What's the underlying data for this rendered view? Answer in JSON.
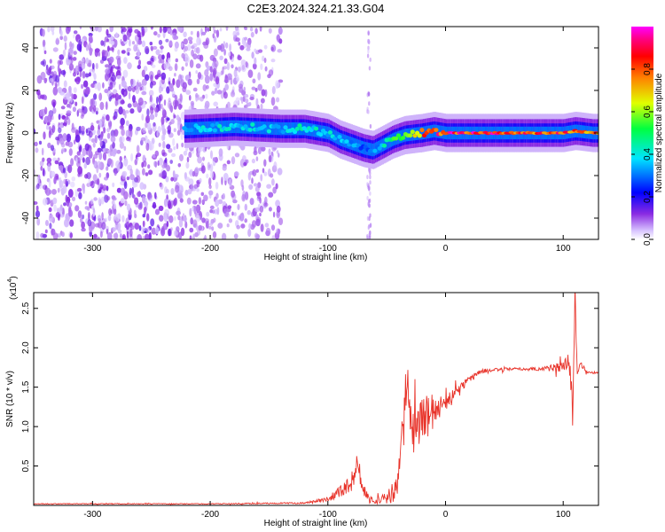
{
  "title": "C2E3.2024.324.21.33.G04",
  "chart_data": [
    {
      "type": "heatmap",
      "xlabel": "Height of straight line (km)",
      "ylabel": "Frequency (Hz)",
      "xlim": [
        -350,
        130
      ],
      "ylim": [
        -50,
        50
      ],
      "x_ticks": [
        -300,
        -200,
        -100,
        0,
        100
      ],
      "y_ticks": [
        -40,
        -20,
        0,
        20,
        40
      ],
      "colorbar": {
        "label": "Normalized spectral amplitude",
        "range": [
          0,
          1
        ],
        "ticks": [
          "0.0",
          "0.2",
          "0.4",
          "0.6",
          "0.8"
        ],
        "tick_values": [
          0.0,
          0.2,
          0.4,
          0.6,
          0.8
        ],
        "colors": [
          "#ffffff",
          "#dcc6ff",
          "#8a2be2",
          "#0000ff",
          "#00e5ff",
          "#00ff40",
          "#e0ff00",
          "#ff8000",
          "#ff0000",
          "#ff0080",
          "#ff00ff"
        ]
      },
      "ridge": {
        "x": [
          -220,
          -200,
          -180,
          -160,
          -140,
          -120,
          -100,
          -90,
          -80,
          -70,
          -62,
          -55,
          -45,
          -35,
          -20,
          -10,
          0,
          20,
          50,
          80,
          100,
          110,
          125
        ],
        "y": [
          2,
          2.5,
          3,
          2.5,
          2,
          2,
          0,
          -3,
          -5,
          -7,
          -8,
          -6,
          -3,
          -1,
          0,
          1,
          0,
          0,
          0,
          0,
          0,
          1,
          0
        ],
        "peak_amplitude": [
          0.35,
          0.4,
          0.4,
          0.4,
          0.35,
          0.45,
          0.4,
          0.35,
          0.35,
          0.3,
          0.3,
          0.4,
          0.5,
          0.6,
          0.8,
          0.85,
          0.9,
          0.9,
          0.9,
          0.85,
          0.85,
          0.85,
          0.8
        ]
      },
      "noise_region_x": [
        -350,
        -140
      ]
    },
    {
      "type": "line",
      "xlabel": "Height of straight line (km)",
      "ylabel": "SNR (10 * v/v)",
      "y_multiplier": "(x10",
      "y_multiplier_exp": "4",
      "xlim": [
        -350,
        130
      ],
      "ylim": [
        0,
        2.7
      ],
      "x_ticks": [
        -300,
        -200,
        -100,
        0,
        100
      ],
      "y_ticks": [
        "0.5",
        "1.0",
        "1.5",
        "2.0",
        "2.5"
      ],
      "y_tick_values": [
        0.5,
        1.0,
        1.5,
        2.0,
        2.5
      ],
      "color": "#e8332a",
      "series": [
        {
          "x": [
            -350,
            -200,
            -120,
            -100,
            -90,
            -80,
            -75,
            -70,
            -65,
            -60,
            -50,
            -40,
            -33,
            -30,
            -25,
            -15,
            -10,
            0,
            10,
            20,
            30,
            40,
            60,
            80,
            90,
            100,
            105,
            108,
            110,
            112,
            115,
            120,
            130
          ],
          "y": [
            0.02,
            0.02,
            0.03,
            0.08,
            0.18,
            0.28,
            0.55,
            0.22,
            0.08,
            0.06,
            0.08,
            0.25,
            1.55,
            1.05,
            1.0,
            1.15,
            1.2,
            1.3,
            1.45,
            1.6,
            1.7,
            1.72,
            1.73,
            1.73,
            1.75,
            1.75,
            1.85,
            1.3,
            2.65,
            1.7,
            1.8,
            1.7,
            1.68
          ],
          "noise": [
            0.005,
            0.005,
            0.01,
            0.03,
            0.08,
            0.12,
            0.15,
            0.1,
            0.05,
            0.05,
            0.08,
            0.2,
            0.4,
            0.3,
            0.25,
            0.3,
            0.2,
            0.1,
            0.06,
            0.05,
            0.03,
            0.02,
            0.02,
            0.02,
            0.05,
            0.08,
            0.1,
            0.2,
            0.15,
            0.05,
            0.04,
            0.02,
            0.01
          ]
        }
      ]
    }
  ]
}
